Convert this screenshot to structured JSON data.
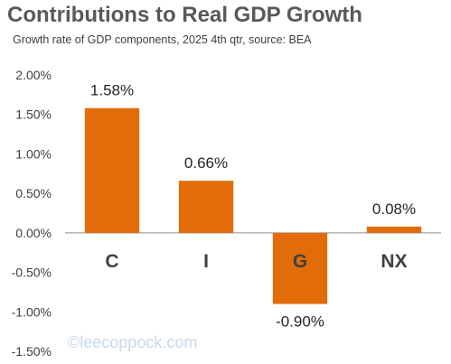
{
  "title": "Contributions to Real GDP Growth",
  "subtitle": "Growth rate of GDP components, 2025 4th qtr, source: BEA",
  "watermark": "©leecoppock.com",
  "colors": {
    "bar": "#E36C0A",
    "axis": "#8c8c8c"
  },
  "chart_data": {
    "type": "bar",
    "categories": [
      "C",
      "I",
      "G",
      "NX"
    ],
    "values": [
      1.58,
      0.66,
      -0.9,
      0.08
    ],
    "data_labels": [
      "1.58%",
      "0.66%",
      "-0.90%",
      "0.08%"
    ],
    "ylim": [
      -1.5,
      2.0
    ],
    "yticks": [
      2.0,
      1.5,
      1.0,
      0.5,
      0.0,
      -0.5,
      -1.0,
      -1.5
    ],
    "ytick_labels": [
      "2.00%",
      "1.50%",
      "1.00%",
      "0.50%",
      "0.00%",
      "-0.50%",
      "-1.00%",
      "-1.50%"
    ],
    "grid": false,
    "legend": "none"
  }
}
